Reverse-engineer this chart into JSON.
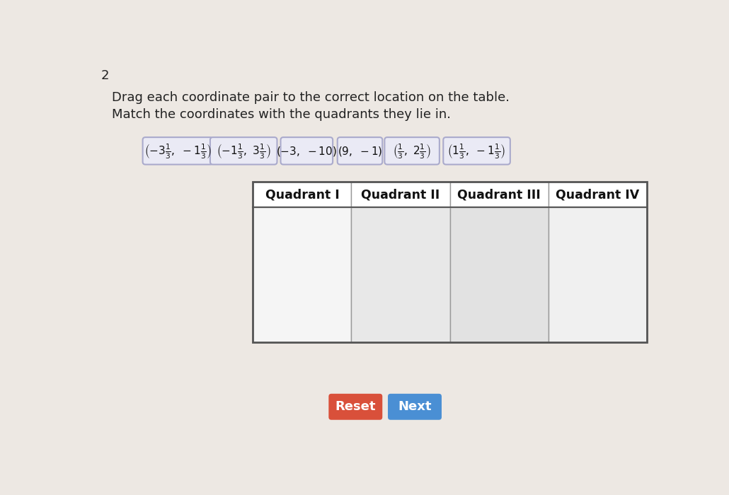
{
  "background_color": "#ede8e3",
  "page_number": "2",
  "instruction_line1": "Drag each coordinate pair to the correct location on the table.",
  "instruction_line2": "Match the coordinates with the quadrants they lie in.",
  "table_headers": [
    "Quadrant I",
    "Quadrant II",
    "Quadrant III",
    "Quadrant IV"
  ],
  "button_reset_color": "#d9503a",
  "button_next_color": "#4a8fd4",
  "button_reset_text": "Reset",
  "button_next_text": "Next",
  "tag_bg_color": "#eaeaf5",
  "tag_border_color": "#aaaacc",
  "header_bg_color": "#ffffff",
  "table_border_color": "#999999"
}
